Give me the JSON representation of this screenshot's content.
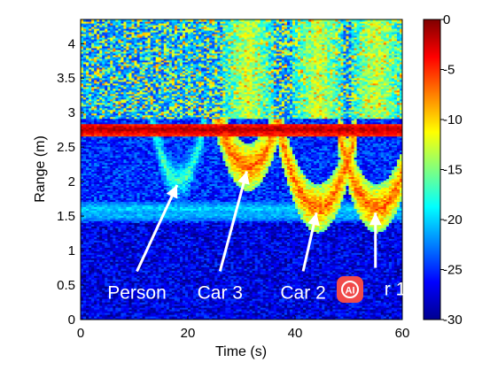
{
  "chart_data": {
    "type": "heatmap",
    "title": "",
    "xlabel": "Time (s)",
    "ylabel": "Range (m)",
    "xlim": [
      0,
      60
    ],
    "ylim": [
      0,
      4.35
    ],
    "xticks": [
      "0",
      "20",
      "40",
      "60"
    ],
    "yticks": [
      "0",
      "0.5",
      "1",
      "1.5",
      "2",
      "2.5",
      "3",
      "3.5",
      "4"
    ],
    "colorbar": {
      "range": [
        -30,
        0
      ],
      "ticks": [
        "0",
        "-5",
        "-10",
        "-15",
        "-20",
        "-25",
        "-30"
      ],
      "colormap": "jet"
    },
    "bands": [
      {
        "range": 2.75,
        "level": 0
      },
      {
        "range": 1.6,
        "level": -18
      },
      {
        "range": 1.5,
        "level": -19
      }
    ],
    "annotations": [
      {
        "text": "Person",
        "x": 18,
        "y": 2.0,
        "arrow_tail": {
          "x": 10.5,
          "y": 0.7
        }
      },
      {
        "text": "Car 3",
        "x": 31,
        "y": 2.2,
        "arrow_tail": {
          "x": 26,
          "y": 0.7
        }
      },
      {
        "text": "Car 2",
        "x": 44,
        "y": 1.6,
        "arrow_tail": {
          "x": 41.5,
          "y": 0.7
        }
      },
      {
        "text": "r 1",
        "x": 55,
        "y": 1.6,
        "arrow_tail": {
          "x": 55,
          "y": 0.75
        }
      }
    ]
  },
  "watermark_icon": "ai-logo-icon",
  "colors": {
    "cmap": [
      "#00008f",
      "#0000ff",
      "#00ffff",
      "#ffff00",
      "#ff0000",
      "#800000"
    ],
    "logo": "#f04a4a"
  }
}
